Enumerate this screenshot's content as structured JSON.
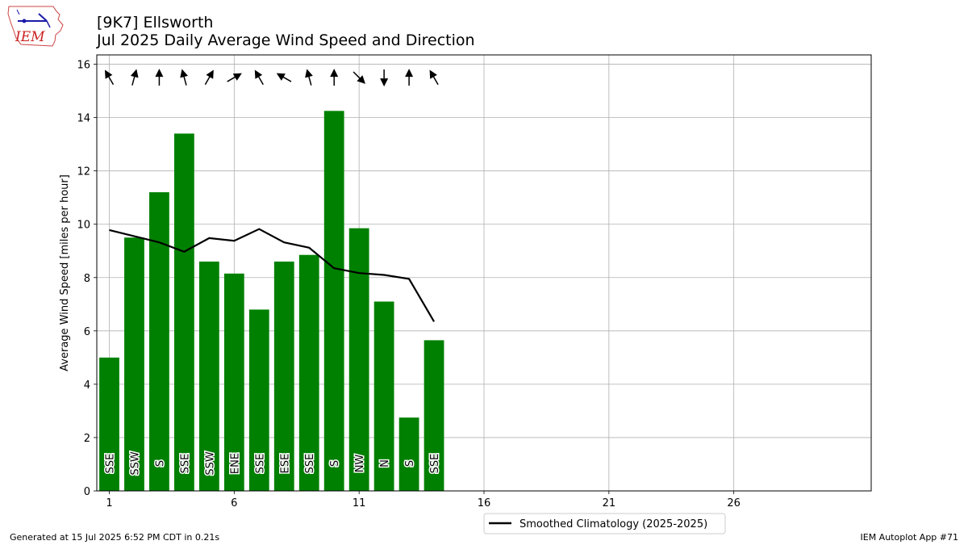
{
  "header": {
    "title": "[9K7] Ellsworth",
    "subtitle": "Jul 2025 Daily Average Wind Speed and Direction"
  },
  "logo": {
    "text": "IEM"
  },
  "footer": {
    "left": "Generated at 15 Jul 2025 6:52 PM CDT in 0.21s",
    "right": "IEM Autoplot App #71"
  },
  "chart_data": {
    "type": "bar",
    "xlim": [
      0.5,
      31.5
    ],
    "ylim": [
      0,
      16.35
    ],
    "xticks": [
      1,
      6,
      11,
      16,
      21,
      26
    ],
    "yticks": [
      0,
      2,
      4,
      6,
      8,
      10,
      12,
      14,
      16
    ],
    "ylabel": "Average Wind Speed [miles per hour]",
    "grid": true,
    "bar_color": "#008000",
    "days": [
      1,
      2,
      3,
      4,
      5,
      6,
      7,
      8,
      9,
      10,
      11,
      12,
      13,
      14
    ],
    "values": [
      5.0,
      9.5,
      11.2,
      13.4,
      8.6,
      8.15,
      6.8,
      8.6,
      8.85,
      14.25,
      9.85,
      7.1,
      2.75,
      5.65
    ],
    "directions": [
      "SSE",
      "SSW",
      "S",
      "SSE",
      "SSW",
      "ENE",
      "SSE",
      "ESE",
      "SSE",
      "S",
      "NW",
      "N",
      "S",
      "SSE"
    ],
    "arrow_angles_deg": [
      -30,
      15,
      0,
      -15,
      30,
      60,
      -30,
      -60,
      -15,
      0,
      135,
      180,
      0,
      -30
    ],
    "climatology": {
      "name": "Smoothed Climatology (2025-2025)",
      "color": "#000000",
      "days": [
        1,
        2,
        3,
        4,
        5,
        6,
        7,
        8,
        9,
        10,
        11,
        12,
        13,
        14
      ],
      "values": [
        9.78,
        9.55,
        9.32,
        8.97,
        9.48,
        9.38,
        9.82,
        9.32,
        9.12,
        8.35,
        8.17,
        8.1,
        7.95,
        6.35
      ]
    },
    "legend_position": "below-center"
  }
}
